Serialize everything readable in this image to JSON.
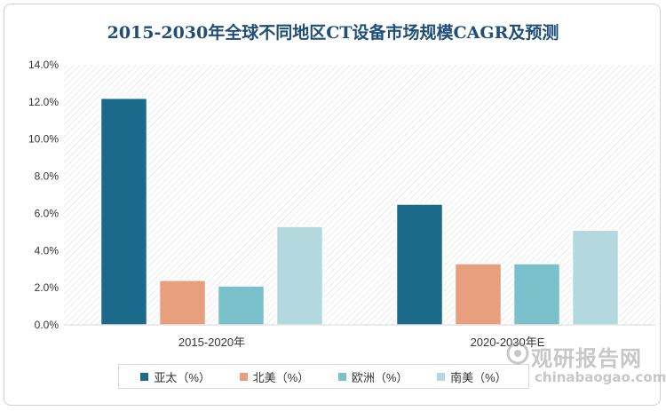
{
  "chart_data": {
    "type": "bar",
    "title": "2015-2030年全球不同地区CT设备市场规模CAGR及预测",
    "categories": [
      "2015-2020年",
      "2020-2030年E"
    ],
    "series": [
      {
        "name": "亚太（%）",
        "color": "#1b6a8c",
        "values": [
          12.2,
          6.5
        ]
      },
      {
        "name": "北美（%）",
        "color": "#e89f7d",
        "values": [
          2.4,
          3.3
        ]
      },
      {
        "name": "欧洲（%）",
        "color": "#7bc1cc",
        "values": [
          2.1,
          3.3
        ]
      },
      {
        "name": "南美（%）",
        "color": "#b3d9de",
        "values": [
          5.3,
          5.1
        ]
      }
    ],
    "ylim": [
      0,
      14
    ],
    "yticks": [
      "0.0%",
      "2.0%",
      "4.0%",
      "6.0%",
      "8.0%",
      "10.0%",
      "12.0%",
      "14.0%"
    ],
    "grid": false,
    "legend_position": "bottom"
  },
  "watermark": {
    "text_cn": "观研报告网",
    "text_en": "chinabaogao.com"
  }
}
